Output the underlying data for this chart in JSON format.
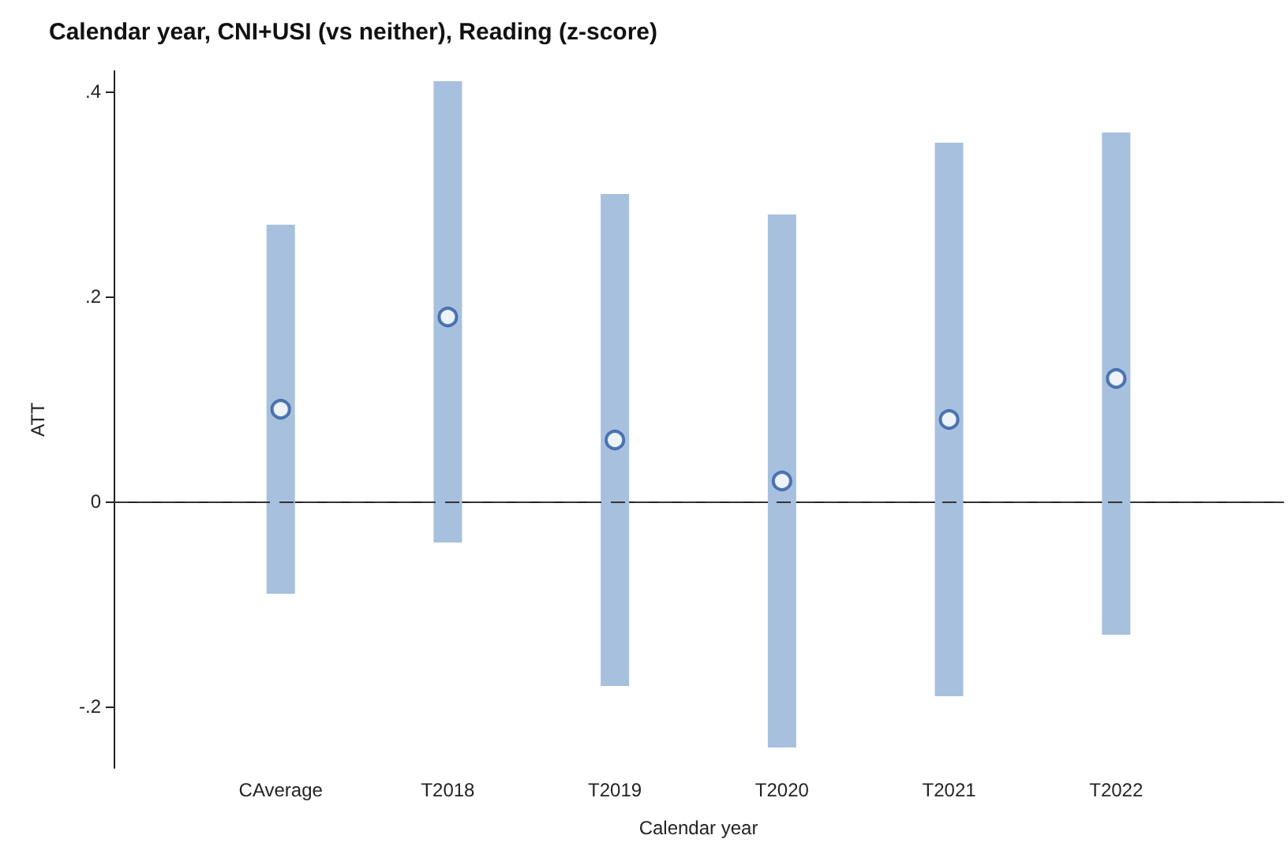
{
  "chart_data": {
    "type": "bar",
    "title": "Calendar year, CNI+USI (vs neither), Reading (z-score)",
    "xlabel": "Calendar year",
    "ylabel": "ATT",
    "categories": [
      null,
      "CAverage",
      "T2018",
      "T2019",
      "T2020",
      "T2021",
      "T2022",
      null
    ],
    "series": [
      {
        "color": "#a7c0de",
        "base": [
          null,
          -0.09,
          -0.04,
          -0.18,
          -0.24,
          -0.19,
          -0.13,
          null
        ],
        "values": [
          null,
          0.36,
          0.45,
          0.48,
          0.52,
          0.54,
          0.49,
          null
        ]
      },
      {
        "type": "scatter",
        "color": "#2c5aa0",
        "marker": "circle",
        "values": [
          null,
          0.09,
          0.18,
          0.06,
          0.02,
          0.08,
          0.12,
          null
        ]
      }
    ],
    "ylim": [
      -0.26,
      0.42
    ],
    "yticks": [
      {
        "value": -0.2,
        "label": "-.2"
      },
      {
        "value": 0,
        "label": "0"
      },
      {
        "value": 0.2,
        "label": ".2"
      },
      {
        "value": 0.4,
        "label": ".4"
      }
    ],
    "ref_lines": [
      {
        "axis": "y",
        "value": 0,
        "line_style": "dashed",
        "color": "#333333"
      }
    ],
    "grid": false
  }
}
